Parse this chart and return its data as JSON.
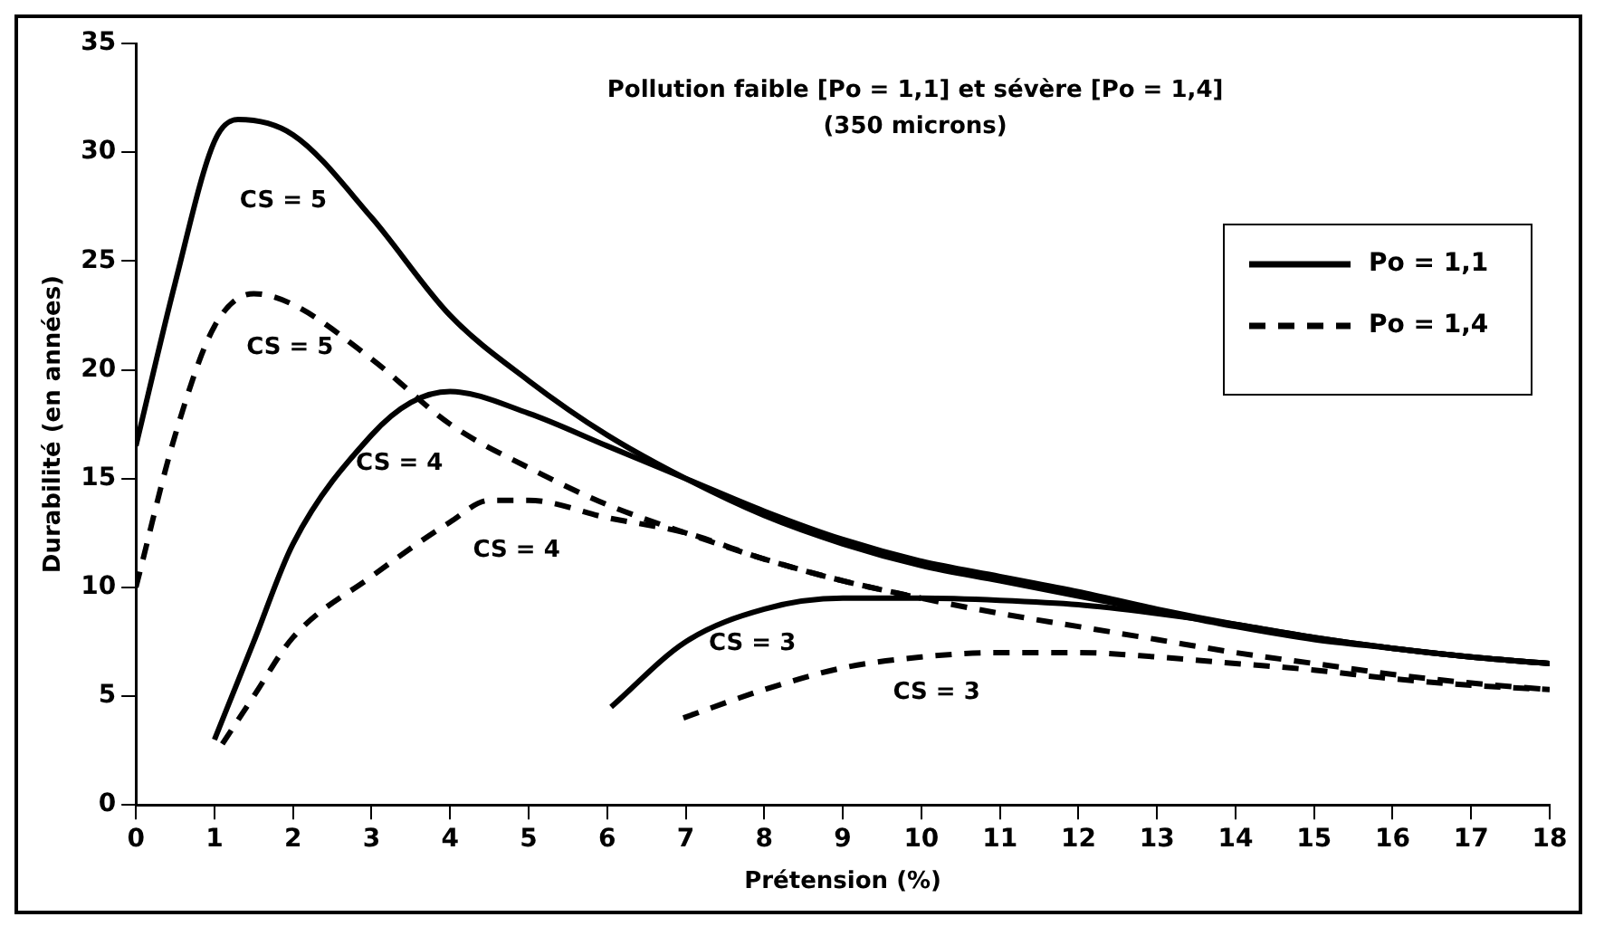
{
  "chart_data": {
    "type": "line",
    "title": "Pollution faible [Po = 1,1] et sévère [Po = 1,4]",
    "subtitle": "(350 microns)",
    "xlabel": "Prétension (%)",
    "ylabel": "Durabilité (en années)",
    "xlim": [
      0,
      18
    ],
    "xticks": [
      0,
      1,
      2,
      3,
      4,
      5,
      6,
      7,
      8,
      9,
      10,
      11,
      12,
      13,
      14,
      15,
      16,
      17,
      18
    ],
    "ylim": [
      0,
      35
    ],
    "yticks": [
      0,
      5,
      10,
      15,
      20,
      25,
      30,
      35
    ],
    "grid": false,
    "legend": "top right",
    "marker": "none",
    "series": [
      {
        "name": "Po = 1,1",
        "color": "#000000",
        "line_style": "solid",
        "x": [
          0,
          0.5,
          1,
          1.3,
          2,
          3,
          4,
          5,
          6,
          7,
          8,
          9,
          10,
          11,
          12,
          13,
          14,
          15,
          16,
          17,
          18
        ],
        "values": [
          16.5,
          24,
          30.5,
          31.5,
          30.8,
          27,
          22.5,
          19.5,
          17,
          15,
          13.3,
          12,
          11,
          10.3,
          9.6,
          8.9,
          8.2,
          7.6,
          7.2,
          6.8,
          6.5
        ]
      },
      {
        "name": "Po = 1,4",
        "color": "#000000",
        "line_style": "dashed",
        "x": [
          0,
          0.5,
          1,
          1.5,
          2,
          3,
          4,
          5,
          6,
          7,
          8,
          9,
          10,
          11,
          12,
          13,
          14,
          15,
          16,
          17,
          18
        ],
        "values": [
          10,
          17,
          22,
          23.5,
          23,
          20.5,
          17.5,
          15.5,
          13.8,
          12.5,
          11.3,
          10.3,
          9.5,
          8.8,
          8.2,
          7.6,
          7,
          6.5,
          6,
          5.6,
          5.3
        ]
      },
      {
        "color": "#000000",
        "line_style": "solid",
        "x": [
          1,
          1.5,
          2,
          3,
          3.5,
          4,
          5,
          6,
          7,
          8,
          9,
          10,
          11,
          12,
          13,
          14,
          15,
          16,
          17,
          18
        ],
        "values": [
          3,
          7.5,
          12,
          17,
          18.5,
          19,
          18,
          16.5,
          15,
          13.5,
          12.2,
          11.2,
          10.5,
          9.8,
          9,
          8.3,
          7.7,
          7.2,
          6.8,
          6.5
        ]
      },
      {
        "color": "#000000",
        "line_style": "dashed",
        "x": [
          1.1,
          1.5,
          2,
          3,
          4,
          4.5,
          5,
          6,
          7,
          8,
          9,
          10
        ],
        "values": [
          2.8,
          5,
          7.7,
          10.5,
          13,
          14,
          14,
          13.2,
          12.5,
          11.3,
          10.3,
          9.5
        ]
      },
      {
        "color": "#000000",
        "line_style": "solid",
        "x": [
          6.05,
          7,
          8,
          9,
          10,
          11,
          12,
          13,
          14,
          15,
          16,
          17,
          18
        ],
        "values": [
          4.5,
          7.5,
          9,
          9.5,
          9.5,
          9.4,
          9.2,
          8.8,
          8.3,
          7.7,
          7.2,
          6.8,
          6.5
        ]
      },
      {
        "color": "#000000",
        "line_style": "dashed",
        "x": [
          6.97,
          8,
          9,
          10,
          11,
          12,
          13,
          14,
          15,
          16,
          17,
          18
        ],
        "values": [
          4,
          5.3,
          6.3,
          6.8,
          7,
          7,
          6.8,
          6.5,
          6.2,
          5.8,
          5.5,
          5.3
        ]
      }
    ],
    "annotations": [
      "CS = 5",
      "CS = 5",
      "CS = 4",
      "CS = 4",
      "CS = 3",
      "CS = 3"
    ]
  }
}
